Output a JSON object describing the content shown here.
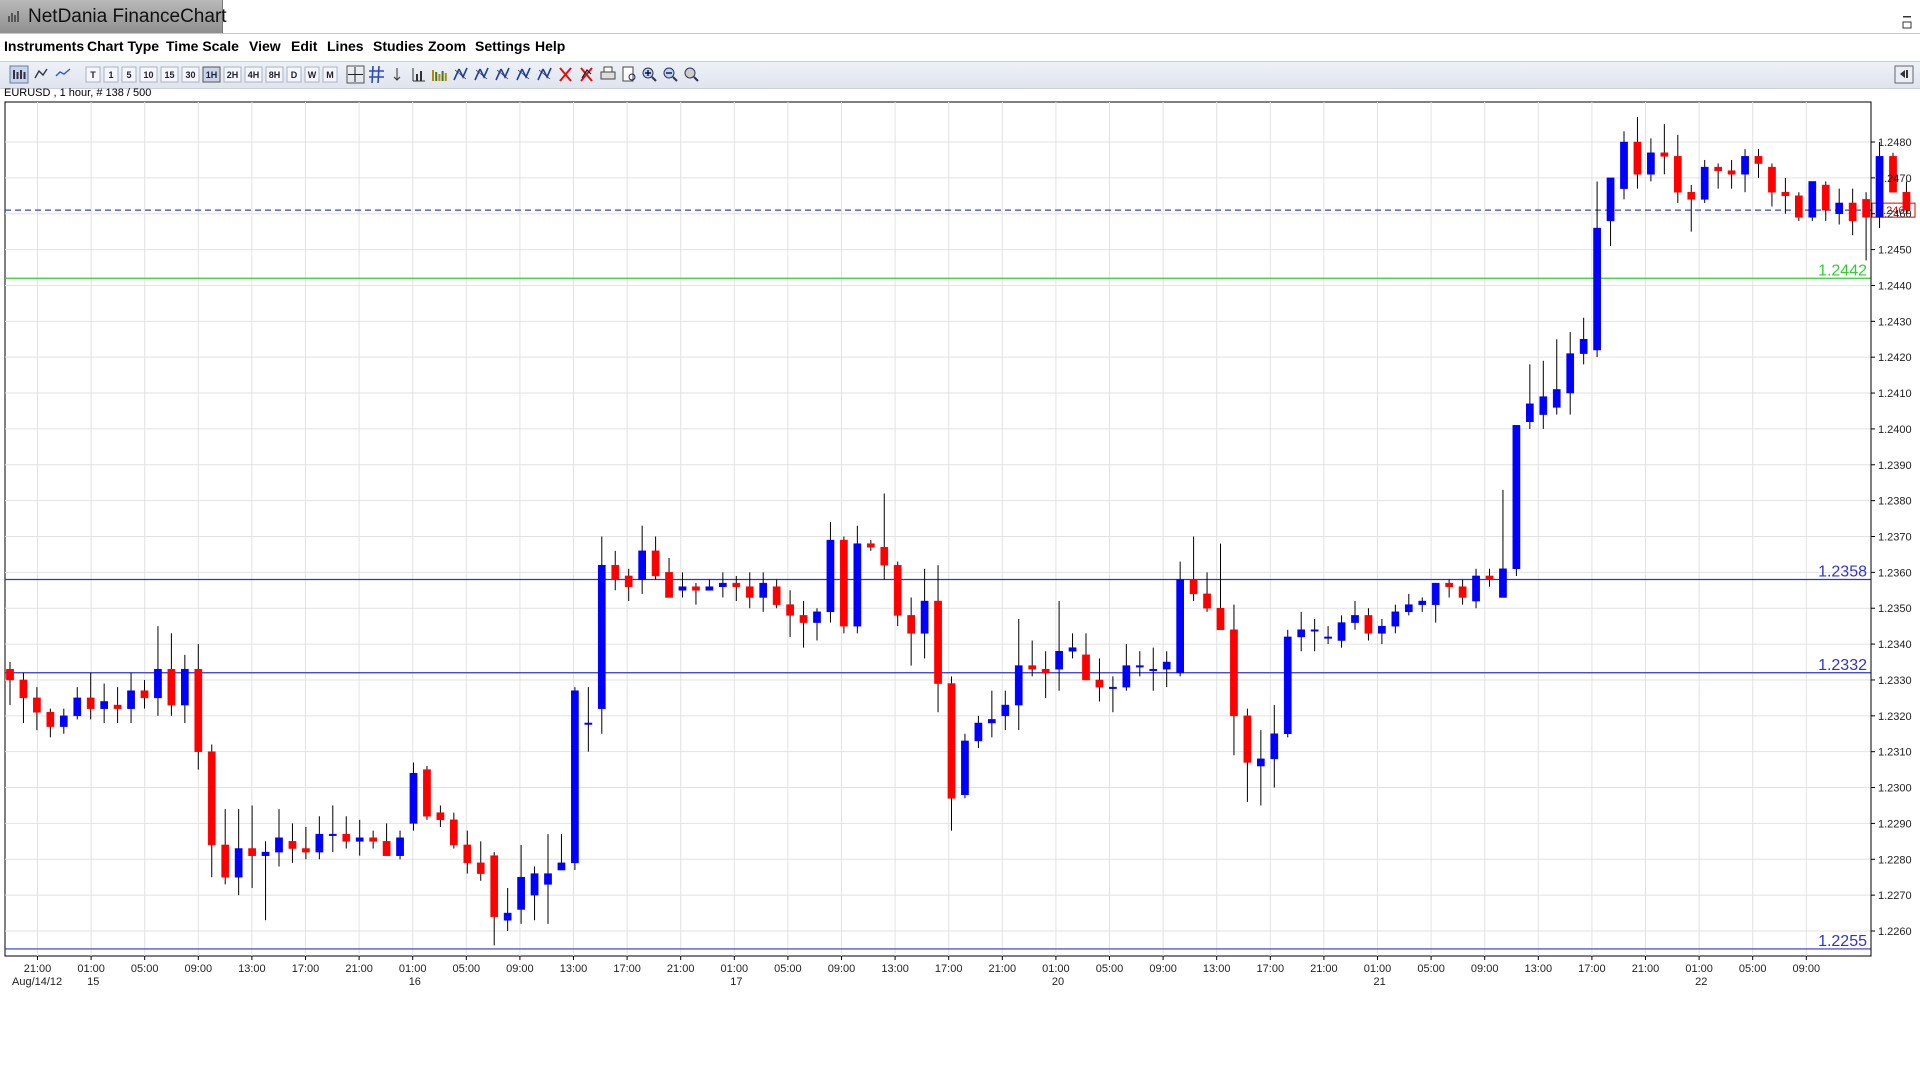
{
  "window": {
    "title": "NetDania FinanceChart"
  },
  "menu": [
    "Instruments",
    "Chart Type",
    "Time Scale",
    "View",
    "Edit",
    "Lines",
    "Studies",
    "Zoom",
    "Settings",
    "Help"
  ],
  "toolbar": {
    "timeframes": [
      "T",
      "1",
      "5",
      "10",
      "15",
      "30",
      "1H",
      "2H",
      "4H",
      "8H",
      "D",
      "W",
      "M"
    ],
    "active_timeframe": "1H",
    "tools": [
      "chart-type-icon",
      "candles-icon",
      "line-icon",
      "crosshair-icon",
      "grid-icon",
      "arrow-icon",
      "volume-icon",
      "bars-icon",
      "fib-icon",
      "fan-icon",
      "arc-icon",
      "channel-icon",
      "draw-icon",
      "delete-icon",
      "delete-all-icon",
      "print-icon",
      "print-preview-icon",
      "zoom-in-icon",
      "zoom-out-icon",
      "zoom-reset-icon"
    ],
    "right_tool": "panel-toggle-icon"
  },
  "symbol_info": "EURUSD , 1 hour, # 138 / 500",
  "chart_data": {
    "type": "candlestick",
    "symbol": "EURUSD",
    "interval": "1 hour",
    "ylim": [
      1.2254,
      1.249
    ],
    "y_ticks": [
      "1.2260",
      "1.2270",
      "1.2280",
      "1.2290",
      "1.2300",
      "1.2310",
      "1.2320",
      "1.2330",
      "1.2340",
      "1.2350",
      "1.2360",
      "1.2370",
      "1.2380",
      "1.2390",
      "1.2400",
      "1.2410",
      "1.2420",
      "1.2430",
      "1.2440",
      "1.2450",
      "1.2460",
      "1.2470",
      "1.2480"
    ],
    "x_ticks": [
      "21:00",
      "01:00",
      "05:00",
      "09:00",
      "13:00",
      "17:00",
      "21:00",
      "01:00",
      "05:00",
      "09:00",
      "13:00",
      "17:00",
      "21:00",
      "01:00",
      "05:00",
      "09:00",
      "13:00",
      "17:00",
      "21:00",
      "01:00",
      "05:00",
      "09:00",
      "13:00",
      "17:00",
      "21:00",
      "01:00",
      "05:00",
      "09:00",
      "13:00",
      "17:00",
      "21:00",
      "01:00",
      "05:00",
      "09:00"
    ],
    "date_labels": [
      {
        "text": "Aug/14/12",
        "tick": 0
      },
      {
        "text": "15",
        "tick": 1
      },
      {
        "text": "16",
        "tick": 7
      },
      {
        "text": "17",
        "tick": 13
      },
      {
        "text": "20",
        "tick": 19
      },
      {
        "text": "21",
        "tick": 25
      },
      {
        "text": "22",
        "tick": 31
      }
    ],
    "current_price": "1.2461",
    "current_value": 1.2461,
    "horizontal_lines": [
      {
        "value": 1.2442,
        "label": "1.2442",
        "color": "#33cc33"
      },
      {
        "value": 1.2358,
        "label": "1.2358",
        "color": "#3333cc"
      },
      {
        "value": 1.2332,
        "label": "1.2332",
        "color": "#3333cc"
      },
      {
        "value": 1.2255,
        "label": "1.2255",
        "color": "#3333cc"
      }
    ],
    "up_color": "#0000ff",
    "down_color": "#ff0000",
    "candles": [
      [
        1.2333,
        1.2335,
        1.2323,
        1.233
      ],
      [
        1.233,
        1.2332,
        1.2318,
        1.2325
      ],
      [
        1.2325,
        1.2328,
        1.2316,
        1.2321
      ],
      [
        1.2321,
        1.2322,
        1.2314,
        1.2317
      ],
      [
        1.2317,
        1.2322,
        1.2315,
        1.232
      ],
      [
        1.232,
        1.2328,
        1.2319,
        1.2325
      ],
      [
        1.2325,
        1.2332,
        1.2319,
        1.2322
      ],
      [
        1.2322,
        1.2329,
        1.2318,
        1.2324
      ],
      [
        1.2323,
        1.2328,
        1.2318,
        1.2322
      ],
      [
        1.2322,
        1.2332,
        1.2318,
        1.2327
      ],
      [
        1.2327,
        1.233,
        1.2322,
        1.2325
      ],
      [
        1.2325,
        1.2345,
        1.232,
        1.2333
      ],
      [
        1.2333,
        1.2343,
        1.232,
        1.2323
      ],
      [
        1.2323,
        1.2337,
        1.2318,
        1.2333
      ],
      [
        1.2333,
        1.234,
        1.2305,
        1.231
      ],
      [
        1.231,
        1.2312,
        1.2275,
        1.2284
      ],
      [
        1.2284,
        1.2294,
        1.2273,
        1.2275
      ],
      [
        1.2275,
        1.2294,
        1.227,
        1.2283
      ],
      [
        1.2283,
        1.2295,
        1.2272,
        1.2281
      ],
      [
        1.2281,
        1.2285,
        1.2263,
        1.2282
      ],
      [
        1.2282,
        1.2294,
        1.2278,
        1.2286
      ],
      [
        1.2285,
        1.229,
        1.2279,
        1.2283
      ],
      [
        1.2283,
        1.2289,
        1.228,
        1.2282
      ],
      [
        1.2282,
        1.2292,
        1.228,
        1.2287
      ],
      [
        1.2287,
        1.2295,
        1.2282,
        1.2287
      ],
      [
        1.2287,
        1.2292,
        1.2283,
        1.2285
      ],
      [
        1.2285,
        1.2291,
        1.2281,
        1.2286
      ],
      [
        1.2286,
        1.2288,
        1.2283,
        1.2285
      ],
      [
        1.2285,
        1.229,
        1.2281,
        1.2281
      ],
      [
        1.2281,
        1.2288,
        1.228,
        1.2286
      ],
      [
        1.229,
        1.2307,
        1.2288,
        1.2304
      ],
      [
        1.2305,
        1.2306,
        1.2291,
        1.2292
      ],
      [
        1.2293,
        1.2295,
        1.2289,
        1.2291
      ],
      [
        1.2291,
        1.2293,
        1.2283,
        1.2284
      ],
      [
        1.2284,
        1.2288,
        1.2276,
        1.2279
      ],
      [
        1.2279,
        1.2285,
        1.2274,
        1.2276
      ],
      [
        1.2281,
        1.2282,
        1.2256,
        1.2264
      ],
      [
        1.2263,
        1.2272,
        1.226,
        1.2265
      ],
      [
        1.2266,
        1.2284,
        1.2262,
        1.2275
      ],
      [
        1.227,
        1.2278,
        1.2263,
        1.2276
      ],
      [
        1.2273,
        1.2287,
        1.2262,
        1.2276
      ],
      [
        1.2277,
        1.2287,
        1.2277,
        1.2279
      ],
      [
        1.2279,
        1.2328,
        1.2277,
        1.2327
      ],
      [
        1.2318,
        1.2328,
        1.231,
        1.2318
      ],
      [
        1.2322,
        1.237,
        1.2315,
        1.2362
      ],
      [
        1.2362,
        1.2366,
        1.2355,
        1.2358
      ],
      [
        1.2359,
        1.2361,
        1.2352,
        1.2356
      ],
      [
        1.2358,
        1.2373,
        1.2354,
        1.2366
      ],
      [
        1.2366,
        1.237,
        1.2358,
        1.2359
      ],
      [
        1.236,
        1.2364,
        1.2353,
        1.2353
      ],
      [
        1.2355,
        1.236,
        1.2353,
        1.2356
      ],
      [
        1.2356,
        1.2357,
        1.2351,
        1.2355
      ],
      [
        1.2355,
        1.2358,
        1.2355,
        1.2356
      ],
      [
        1.2356,
        1.236,
        1.2353,
        1.2357
      ],
      [
        1.2357,
        1.2359,
        1.2352,
        1.2356
      ],
      [
        1.2356,
        1.236,
        1.235,
        1.2353
      ],
      [
        1.2353,
        1.236,
        1.2349,
        1.2357
      ],
      [
        1.2356,
        1.2358,
        1.235,
        1.2351
      ],
      [
        1.2351,
        1.2355,
        1.2342,
        1.2348
      ],
      [
        1.2348,
        1.2352,
        1.2339,
        1.2346
      ],
      [
        1.2346,
        1.235,
        1.2341,
        1.2349
      ],
      [
        1.2349,
        1.2374,
        1.2346,
        1.2369
      ],
      [
        1.2369,
        1.237,
        1.2343,
        1.2345
      ],
      [
        1.2345,
        1.2373,
        1.2343,
        1.2368
      ],
      [
        1.2368,
        1.2369,
        1.2366,
        1.2367
      ],
      [
        1.2367,
        1.2382,
        1.2358,
        1.2362
      ],
      [
        1.2362,
        1.2363,
        1.2345,
        1.2348
      ],
      [
        1.2348,
        1.2353,
        1.2334,
        1.2343
      ],
      [
        1.2343,
        1.2361,
        1.2336,
        1.2352
      ],
      [
        1.2352,
        1.2362,
        1.2321,
        1.2329
      ],
      [
        1.2329,
        1.2331,
        1.2288,
        1.2297
      ],
      [
        1.2298,
        1.2315,
        1.2297,
        1.2313
      ],
      [
        1.2313,
        1.232,
        1.2311,
        1.2318
      ],
      [
        1.2318,
        1.2327,
        1.2314,
        1.2319
      ],
      [
        1.232,
        1.2327,
        1.2316,
        1.2323
      ],
      [
        1.2323,
        1.2347,
        1.2316,
        1.2334
      ],
      [
        1.2334,
        1.2341,
        1.2331,
        1.2333
      ],
      [
        1.2333,
        1.2338,
        1.2325,
        1.2332
      ],
      [
        1.2333,
        1.2352,
        1.2327,
        1.2338
      ],
      [
        1.2338,
        1.2343,
        1.2336,
        1.2339
      ],
      [
        1.2337,
        1.2343,
        1.2332,
        1.233
      ],
      [
        1.233,
        1.2336,
        1.2324,
        1.2328
      ],
      [
        1.2328,
        1.2331,
        1.2321,
        1.2328
      ],
      [
        1.2328,
        1.234,
        1.2327,
        1.2334
      ],
      [
        1.2334,
        1.2338,
        1.2331,
        1.2334
      ],
      [
        1.2333,
        1.2339,
        1.2327,
        1.2333
      ],
      [
        1.2333,
        1.2338,
        1.2328,
        1.2335
      ],
      [
        1.2332,
        1.2363,
        1.2331,
        1.2358
      ],
      [
        1.2358,
        1.237,
        1.2352,
        1.2354
      ],
      [
        1.2354,
        1.236,
        1.2349,
        1.235
      ],
      [
        1.235,
        1.2368,
        1.2346,
        1.2344
      ],
      [
        1.2344,
        1.2351,
        1.2309,
        1.232
      ],
      [
        1.232,
        1.2322,
        1.2296,
        1.2307
      ],
      [
        1.2306,
        1.2316,
        1.2295,
        1.2308
      ],
      [
        1.2308,
        1.2323,
        1.23,
        1.2315
      ],
      [
        1.2315,
        1.2344,
        1.2314,
        1.2342
      ],
      [
        1.2342,
        1.2349,
        1.2338,
        1.2344
      ],
      [
        1.2344,
        1.2347,
        1.2338,
        1.2344
      ],
      [
        1.2342,
        1.2345,
        1.234,
        1.2342
      ],
      [
        1.2341,
        1.2348,
        1.2339,
        1.2346
      ],
      [
        1.2346,
        1.2352,
        1.2344,
        1.2348
      ],
      [
        1.2348,
        1.235,
        1.2341,
        1.2343
      ],
      [
        1.2343,
        1.2347,
        1.234,
        1.2345
      ],
      [
        1.2345,
        1.2351,
        1.2343,
        1.2349
      ],
      [
        1.2349,
        1.2354,
        1.2348,
        1.2351
      ],
      [
        1.2351,
        1.2353,
        1.2349,
        1.2352
      ],
      [
        1.2351,
        1.2357,
        1.2346,
        1.2357
      ],
      [
        1.2357,
        1.2358,
        1.2353,
        1.2356
      ],
      [
        1.2356,
        1.2358,
        1.2351,
        1.2353
      ],
      [
        1.2352,
        1.2361,
        1.235,
        1.2359
      ],
      [
        1.2359,
        1.2361,
        1.2356,
        1.2358
      ],
      [
        1.2353,
        1.2383,
        1.2353,
        1.2361
      ],
      [
        1.2361,
        1.2401,
        1.2359,
        1.2401
      ],
      [
        1.2402,
        1.2418,
        1.24,
        1.2407
      ],
      [
        1.2404,
        1.2419,
        1.24,
        1.2409
      ],
      [
        1.2406,
        1.2425,
        1.2404,
        1.2411
      ],
      [
        1.241,
        1.2427,
        1.2404,
        1.2421
      ],
      [
        1.2421,
        1.2431,
        1.2418,
        1.2425
      ],
      [
        1.2422,
        1.2469,
        1.242,
        1.2456
      ],
      [
        1.2458,
        1.2469,
        1.2451,
        1.247
      ],
      [
        1.2467,
        1.2483,
        1.2464,
        1.248
      ],
      [
        1.248,
        1.2487,
        1.2467,
        1.2471
      ],
      [
        1.2471,
        1.2481,
        1.2469,
        1.2477
      ],
      [
        1.2477,
        1.2485,
        1.2471,
        1.2476
      ],
      [
        1.2476,
        1.2482,
        1.2463,
        1.2466
      ],
      [
        1.2466,
        1.2468,
        1.2455,
        1.2464
      ],
      [
        1.2464,
        1.2475,
        1.2463,
        1.2473
      ],
      [
        1.2473,
        1.2474,
        1.2467,
        1.2472
      ],
      [
        1.2472,
        1.2475,
        1.2467,
        1.2471
      ],
      [
        1.2471,
        1.2478,
        1.2466,
        1.2476
      ],
      [
        1.2476,
        1.2478,
        1.247,
        1.2474
      ],
      [
        1.2473,
        1.2474,
        1.2462,
        1.2466
      ],
      [
        1.2466,
        1.247,
        1.246,
        1.2465
      ],
      [
        1.2465,
        1.2466,
        1.2458,
        1.2459
      ],
      [
        1.2459,
        1.2468,
        1.2458,
        1.2469
      ],
      [
        1.2468,
        1.2469,
        1.2458,
        1.2461
      ],
      [
        1.246,
        1.2467,
        1.2457,
        1.2463
      ],
      [
        1.2463,
        1.2467,
        1.2454,
        1.2458
      ],
      [
        1.2464,
        1.2466,
        1.2447,
        1.2459
      ],
      [
        1.2459,
        1.248,
        1.2456,
        1.2476
      ],
      [
        1.2476,
        1.2477,
        1.2466,
        1.2466
      ],
      [
        1.2466,
        1.2469,
        1.246,
        1.2461
      ]
    ]
  }
}
